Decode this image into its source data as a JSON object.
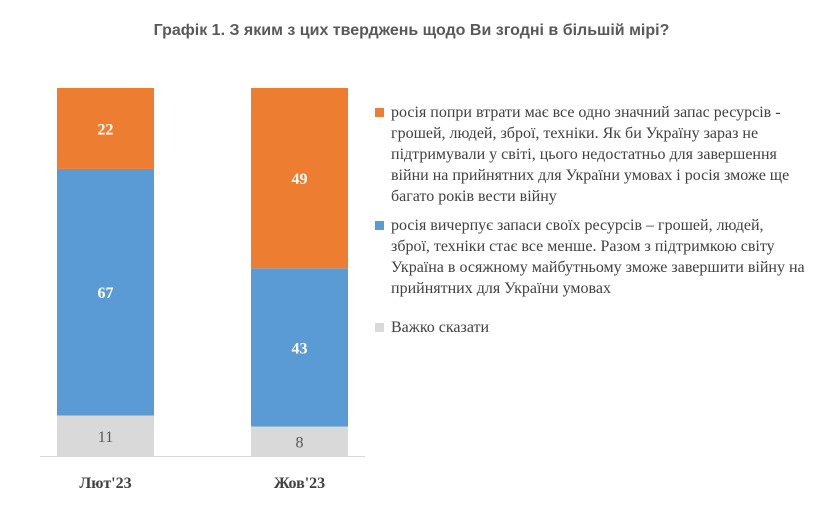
{
  "chart_data": {
    "type": "bar",
    "stacked": true,
    "title": "Графік 1. З яким з цих тверджень щодо Ви згодні в більшій мірі?",
    "categories": [
      "Лют'23",
      "Жов'23"
    ],
    "series": [
      {
        "name": "Важко сказати",
        "values": [
          11,
          8
        ],
        "color": "#d9d9d9"
      },
      {
        "name": "росія вичерпує запаси своїх ресурсів – грошей, людей, зброї, техніки стає все менше. Разом з підтримкою світу Україна в осяжному майбутньому зможе завершити війну на прийнятних для України умовах",
        "values": [
          67,
          43
        ],
        "color": "#5b9bd5"
      },
      {
        "name": "росія попри втрати має все одно значний запас ресурсів - грошей, людей, зброї, техніки. Як би Україну зараз не підтримували у світі, цього недостатньо для завершення війни на прийнятних для України умовах і росія зможе ще багато років вести війну",
        "values": [
          22,
          49
        ],
        "color": "#ed7d31"
      }
    ],
    "legend_order": [
      2,
      1,
      0
    ],
    "legend_position": "right",
    "grid": false
  }
}
